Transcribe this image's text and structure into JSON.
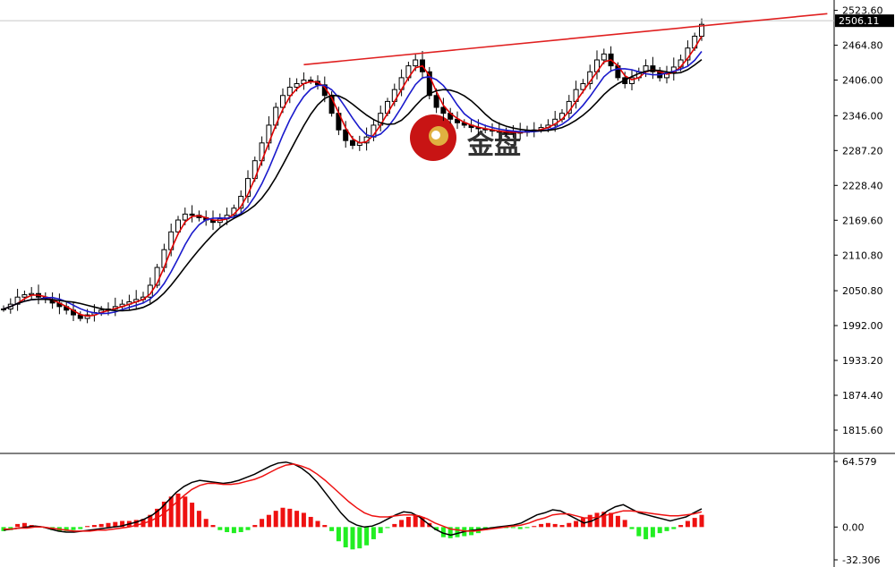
{
  "chart_data": [
    {
      "type": "candlestick",
      "y_ticks": [
        "2523.60",
        "2464.80",
        "2406.00",
        "2346.00",
        "2287.20",
        "2228.40",
        "2169.60",
        "2110.80",
        "2050.80",
        "1992.00",
        "1933.20",
        "1874.40",
        "1815.60"
      ],
      "ylim": [
        1799,
        2532
      ],
      "current_price": "2506.11",
      "colors": {
        "candle": "#000000",
        "ma_fast": "#e00000",
        "ma_mid": "#1a1acc",
        "ma_slow": "#000000",
        "trendline": "#e02020",
        "price_tag_bg": "#000000",
        "price_tag_text": "#ffffff"
      },
      "close": [
        2020,
        2028,
        2040,
        2044,
        2046,
        2040,
        2036,
        2030,
        2024,
        2018,
        2010,
        2004,
        2010,
        2014,
        2018,
        2020,
        2024,
        2028,
        2032,
        2036,
        2040,
        2060,
        2090,
        2120,
        2150,
        2170,
        2180,
        2178,
        2174,
        2170,
        2166,
        2172,
        2178,
        2190,
        2210,
        2240,
        2270,
        2300,
        2330,
        2360,
        2380,
        2394,
        2400,
        2406,
        2404,
        2398,
        2380,
        2350,
        2322,
        2304,
        2296,
        2300,
        2310,
        2330,
        2350,
        2370,
        2390,
        2410,
        2430,
        2440,
        2420,
        2380,
        2360,
        2350,
        2340,
        2334,
        2330,
        2326,
        2324,
        2322,
        2320,
        2318,
        2318,
        2318,
        2318,
        2320,
        2322,
        2326,
        2330,
        2340,
        2350,
        2370,
        2390,
        2400,
        2420,
        2440,
        2450,
        2430,
        2410,
        2400,
        2410,
        2420,
        2430,
        2420,
        2410,
        2418,
        2428,
        2440,
        2460,
        2480,
        2500
      ],
      "trendline": {
        "from_index": 43,
        "from_price": 2432,
        "to_index": 118,
        "to_price": 2518
      },
      "watermark": {
        "text": "金盘"
      }
    },
    {
      "type": "macd",
      "y_ticks": [
        "64.579",
        "0.00",
        "-32.306"
      ],
      "ylim": [
        -32.306,
        64.579
      ],
      "colors": {
        "hist_positive": "#ee1111",
        "hist_negative": "#22ee22",
        "line_macd": "#000000",
        "line_signal": "#ee1111"
      },
      "histogram": [
        -4,
        -3,
        3,
        4,
        2,
        1,
        -1,
        -3,
        -4,
        -4,
        -3,
        -2,
        1,
        2,
        3,
        4,
        5,
        6,
        6,
        7,
        8,
        12,
        18,
        25,
        30,
        33,
        30,
        24,
        16,
        8,
        2,
        -3,
        -5,
        -6,
        -5,
        -3,
        2,
        8,
        12,
        16,
        19,
        18,
        16,
        14,
        10,
        6,
        2,
        -4,
        -14,
        -20,
        -22,
        -21,
        -18,
        -12,
        -6,
        -1,
        3,
        7,
        10,
        12,
        10,
        4,
        -3,
        -10,
        -11,
        -10,
        -9,
        -8,
        -6,
        -3,
        -1,
        0,
        -1,
        -1,
        -2,
        -1,
        1,
        3,
        4,
        3,
        2,
        4,
        6,
        9,
        12,
        14,
        15,
        14,
        11,
        7,
        -2,
        -9,
        -12,
        -10,
        -6,
        -4,
        -2,
        2,
        6,
        9,
        12
      ],
      "macd": [
        -3,
        -2,
        -1,
        0,
        1,
        0,
        -2,
        -4,
        -5,
        -5,
        -4,
        -3,
        -2,
        -1,
        0,
        1,
        3,
        5,
        8,
        12,
        18,
        26,
        34,
        40,
        44,
        46,
        45,
        44,
        43,
        44,
        46,
        49,
        52,
        56,
        60,
        63,
        64,
        62,
        58,
        52,
        44,
        34,
        24,
        14,
        6,
        2,
        0,
        1,
        4,
        8,
        12,
        15,
        14,
        10,
        4,
        -2,
        -6,
        -8,
        -6,
        -4,
        -3,
        -2,
        -1,
        0,
        1,
        2,
        4,
        8,
        12,
        14,
        17,
        16,
        12,
        8,
        4,
        6,
        10,
        16,
        20,
        22,
        18,
        14,
        12,
        10,
        8,
        6,
        8,
        10,
        14,
        18
      ],
      "signal": [
        -2,
        -2,
        -1,
        -1,
        0,
        0,
        -1,
        -2,
        -3,
        -4,
        -4,
        -4,
        -3,
        -3,
        -2,
        -1,
        0,
        2,
        4,
        7,
        11,
        17,
        24,
        31,
        37,
        41,
        43,
        43,
        42,
        42,
        43,
        45,
        47,
        50,
        54,
        58,
        61,
        62,
        60,
        57,
        52,
        46,
        39,
        32,
        25,
        19,
        14,
        11,
        10,
        10,
        11,
        12,
        12,
        11,
        8,
        4,
        1,
        -2,
        -3,
        -4,
        -4,
        -3,
        -2,
        -1,
        0,
        1,
        2,
        4,
        7,
        9,
        12,
        13,
        13,
        11,
        9,
        9,
        10,
        12,
        14,
        16,
        16,
        15,
        14,
        13,
        12,
        11,
        11,
        12,
        13,
        15
      ],
      "watermark": {}
    }
  ]
}
